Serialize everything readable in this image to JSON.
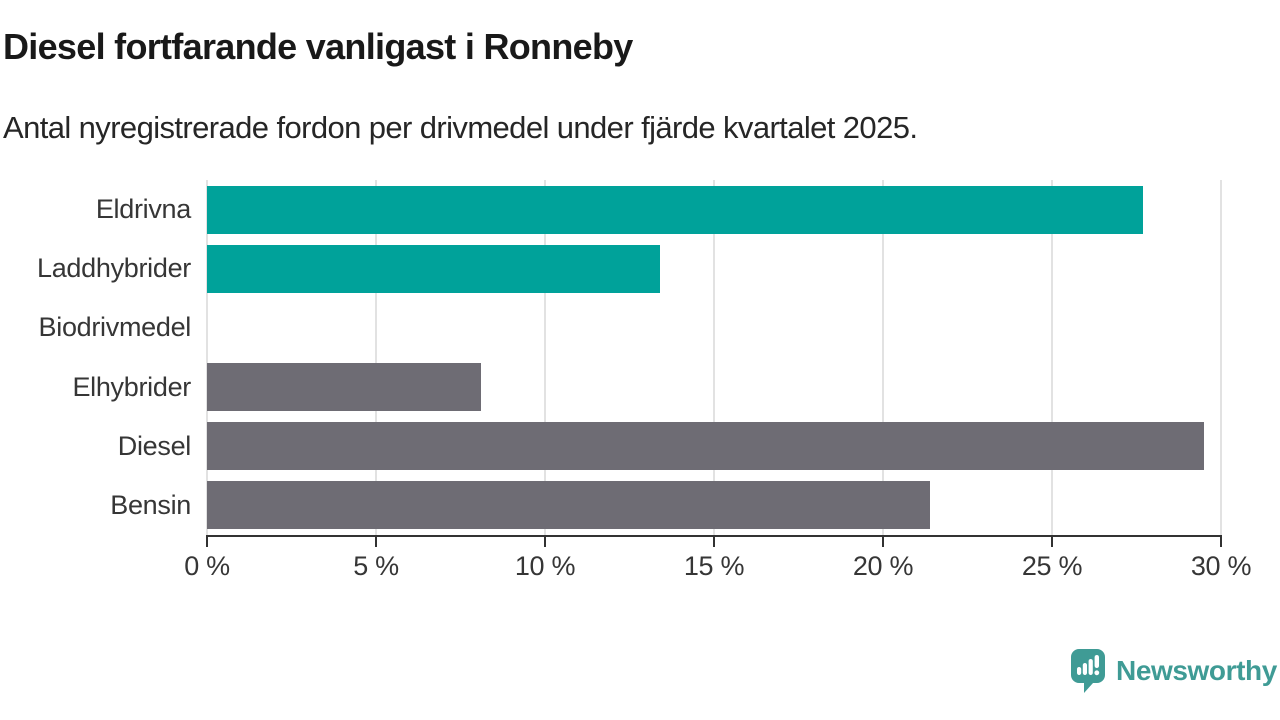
{
  "chart_data": {
    "type": "bar",
    "orientation": "horizontal",
    "title": "Diesel fortfarande vanligast i Ronneby",
    "subtitle": "Antal nyregistrerade fordon per drivmedel under fjärde kvartalet 2025.",
    "categories": [
      "Eldrivna",
      "Laddhybrider",
      "Biodrivmedel",
      "Elhybrider",
      "Diesel",
      "Bensin"
    ],
    "values": [
      27.7,
      13.4,
      0,
      8.1,
      29.5,
      21.4
    ],
    "bar_colors": [
      "#00a29a",
      "#00a29a",
      "#00a29a",
      "#6e6c74",
      "#6e6c74",
      "#6e6c74"
    ],
    "xlim": [
      0,
      30
    ],
    "x_ticks": [
      0,
      5,
      10,
      15,
      20,
      25,
      30
    ],
    "x_tick_suffix": " %",
    "grid": "vertical",
    "legend": "none"
  },
  "colors": {
    "highlight_teal": "#00a29a",
    "neutral_gray": "#6e6c74",
    "gridline": "#e2e2e2",
    "axis": "#323232",
    "title_text": "#191919",
    "label_text": "#363636",
    "brand_teal": "#3f9b95"
  },
  "footer": {
    "brand_label": "Newsworthy"
  }
}
